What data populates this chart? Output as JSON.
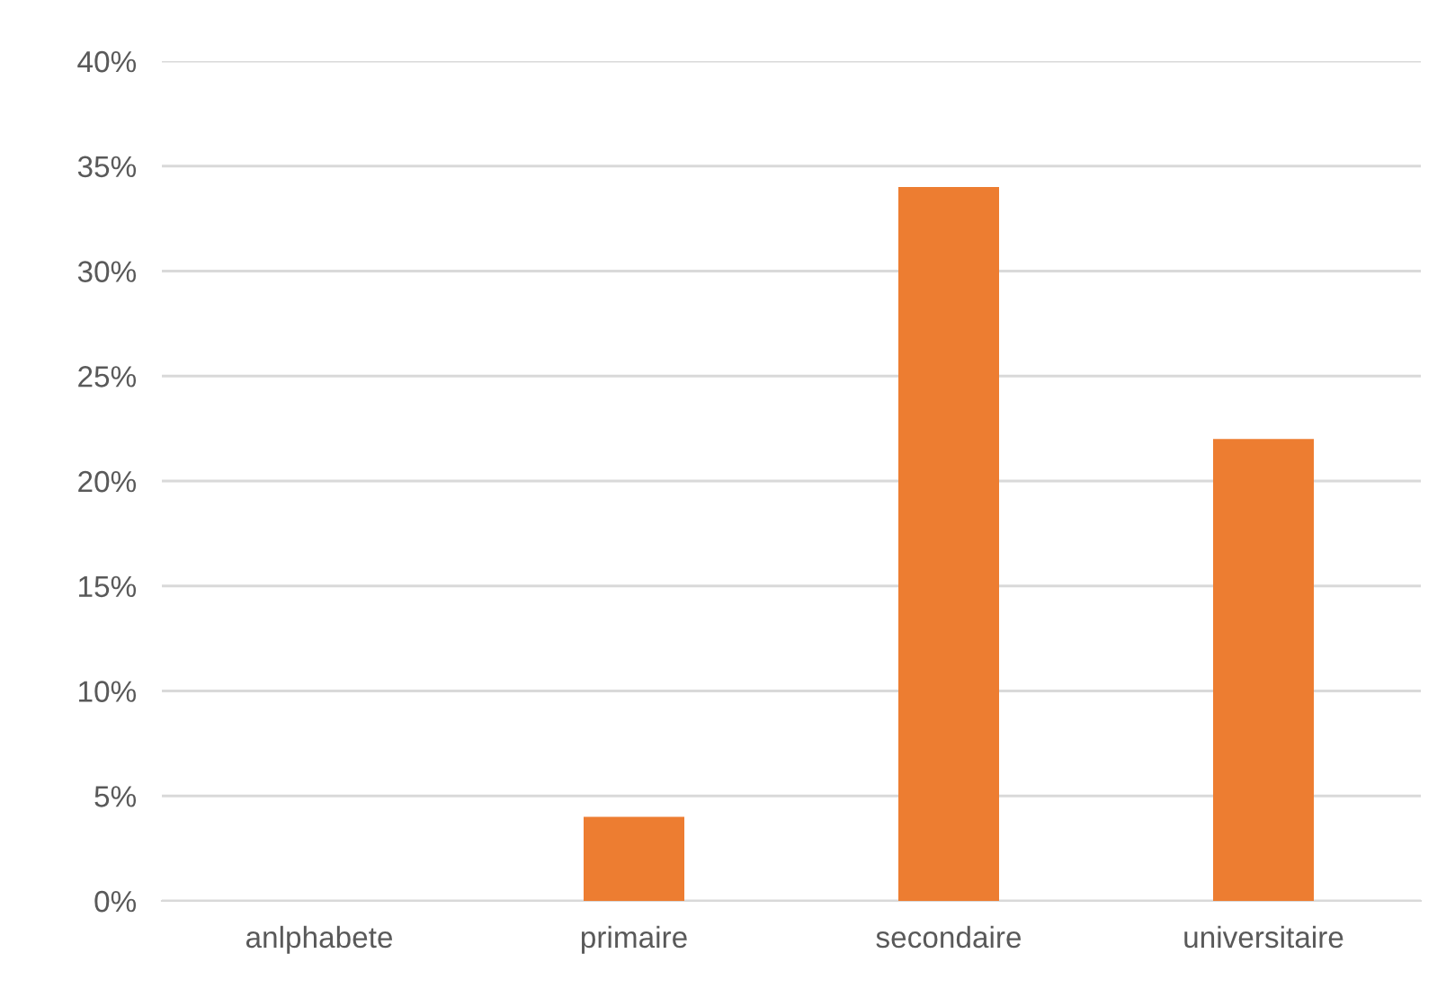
{
  "chart_data": {
    "type": "bar",
    "categories": [
      "anlphabete",
      "primaire",
      "secondaire",
      "universitaire"
    ],
    "values": [
      0,
      4,
      34,
      22
    ],
    "color": "#ed7d31",
    "ylim": [
      0,
      40
    ],
    "yticks": [
      {
        "value": 0,
        "label": "0%"
      },
      {
        "value": 5,
        "label": "5%"
      },
      {
        "value": 10,
        "label": "10%"
      },
      {
        "value": 15,
        "label": "15%"
      },
      {
        "value": 20,
        "label": "20%"
      },
      {
        "value": 25,
        "label": "25%"
      },
      {
        "value": 30,
        "label": "30%"
      },
      {
        "value": 35,
        "label": "35%"
      },
      {
        "value": 40,
        "label": "40%"
      }
    ],
    "grid": "y",
    "legend": false
  }
}
